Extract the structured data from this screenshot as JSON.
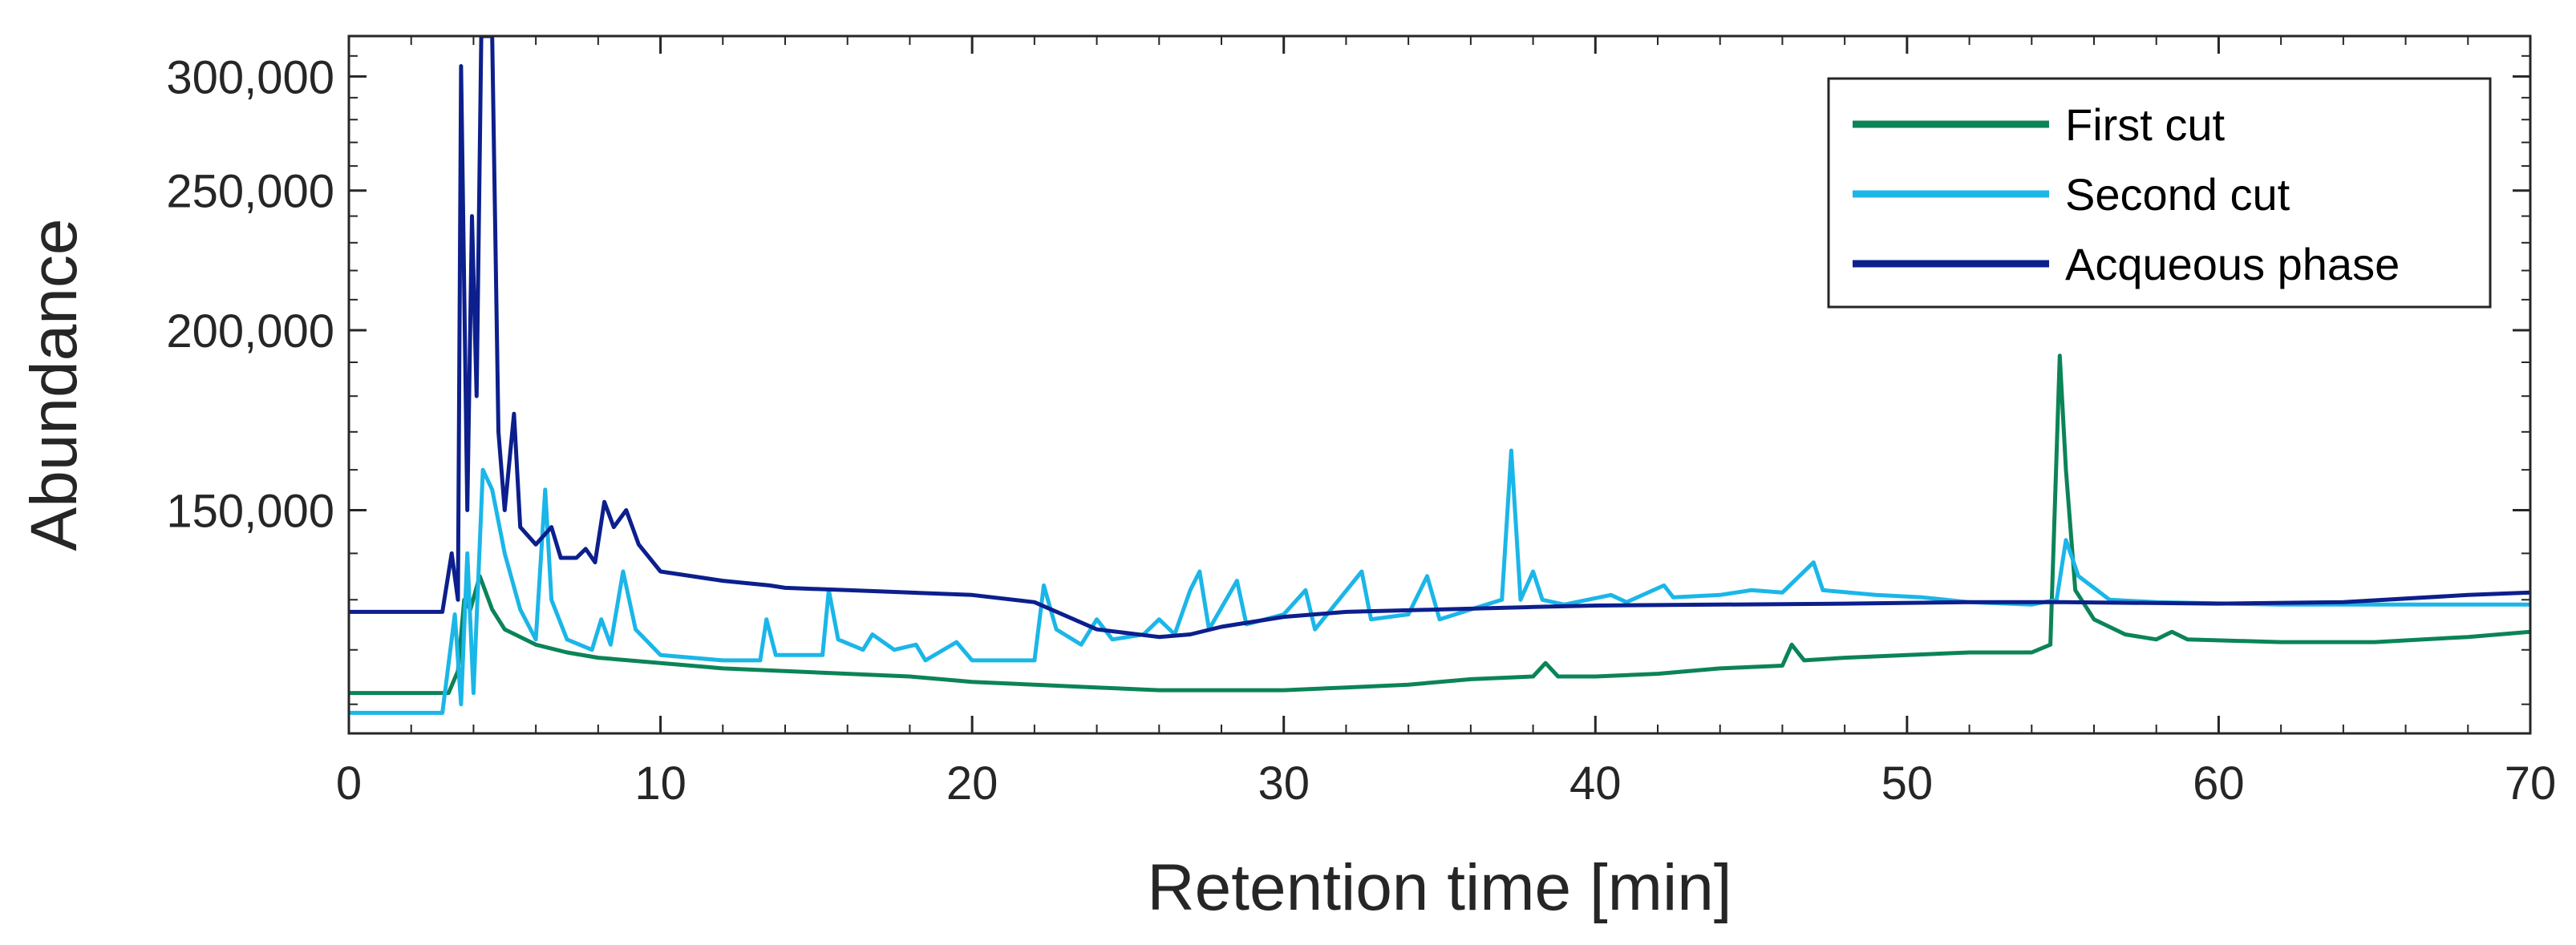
{
  "chart_data": {
    "type": "line",
    "xlabel": "Retention time [min]",
    "ylabel": "Abundance",
    "xlim": [
      0,
      70
    ],
    "ylim": [
      105000,
      320000
    ],
    "y_scale": "log",
    "xticks": [
      "0",
      "10",
      "20",
      "30",
      "40",
      "50",
      "60",
      "70"
    ],
    "yticks": [
      "150,000",
      "200,000",
      "250,000",
      "300,000"
    ],
    "grid": false,
    "legend_position": "top-right",
    "series": [
      {
        "name": "First cut",
        "color": "#0b8457",
        "points": [
          [
            0,
            112000
          ],
          [
            3.2,
            112000
          ],
          [
            3.5,
            116000
          ],
          [
            3.7,
            130000
          ],
          [
            3.9,
            128000
          ],
          [
            4.2,
            135000
          ],
          [
            4.6,
            128000
          ],
          [
            5.0,
            124000
          ],
          [
            6.0,
            121000
          ],
          [
            7.0,
            119500
          ],
          [
            8.0,
            118500
          ],
          [
            10.0,
            117500
          ],
          [
            12.0,
            116500
          ],
          [
            14.0,
            116000
          ],
          [
            16.0,
            115500
          ],
          [
            18.0,
            115000
          ],
          [
            20.0,
            114000
          ],
          [
            22.0,
            113500
          ],
          [
            24.0,
            113000
          ],
          [
            26.0,
            112500
          ],
          [
            28.0,
            112500
          ],
          [
            30.0,
            112500
          ],
          [
            32.0,
            113000
          ],
          [
            34.0,
            113500
          ],
          [
            36.0,
            114500
          ],
          [
            38.0,
            115000
          ],
          [
            38.4,
            117500
          ],
          [
            38.8,
            115000
          ],
          [
            40.0,
            115000
          ],
          [
            42.0,
            115500
          ],
          [
            44.0,
            116500
          ],
          [
            46.0,
            117000
          ],
          [
            46.3,
            121000
          ],
          [
            46.7,
            118000
          ],
          [
            48.0,
            118500
          ],
          [
            50.0,
            119000
          ],
          [
            52.0,
            119500
          ],
          [
            54.0,
            119500
          ],
          [
            54.6,
            121000
          ],
          [
            54.9,
            192000
          ],
          [
            55.1,
            160000
          ],
          [
            55.4,
            132000
          ],
          [
            56.0,
            126000
          ],
          [
            57.0,
            123000
          ],
          [
            58.0,
            122000
          ],
          [
            58.5,
            123500
          ],
          [
            59.0,
            122000
          ],
          [
            62.0,
            121500
          ],
          [
            65.0,
            121500
          ],
          [
            68.0,
            122500
          ],
          [
            70.0,
            123500
          ]
        ]
      },
      {
        "name": "Second cut",
        "color": "#1bb6e8",
        "points": [
          [
            0,
            108500
          ],
          [
            3.0,
            108500
          ],
          [
            3.4,
            127000
          ],
          [
            3.6,
            110000
          ],
          [
            3.8,
            140000
          ],
          [
            4.0,
            112000
          ],
          [
            4.3,
            160000
          ],
          [
            4.6,
            155000
          ],
          [
            5.0,
            140000
          ],
          [
            5.5,
            128000
          ],
          [
            6.0,
            122000
          ],
          [
            6.3,
            155000
          ],
          [
            6.5,
            130000
          ],
          [
            7.0,
            122000
          ],
          [
            7.8,
            120000
          ],
          [
            8.1,
            126000
          ],
          [
            8.4,
            121000
          ],
          [
            8.8,
            136000
          ],
          [
            9.2,
            124000
          ],
          [
            10.0,
            119000
          ],
          [
            12.0,
            118000
          ],
          [
            13.2,
            118000
          ],
          [
            13.4,
            126000
          ],
          [
            13.7,
            119000
          ],
          [
            15.2,
            119000
          ],
          [
            15.4,
            132000
          ],
          [
            15.7,
            122000
          ],
          [
            16.5,
            120000
          ],
          [
            16.8,
            123000
          ],
          [
            17.5,
            120000
          ],
          [
            18.2,
            121000
          ],
          [
            18.5,
            118000
          ],
          [
            19.5,
            121500
          ],
          [
            20.0,
            118000
          ],
          [
            22.0,
            118000
          ],
          [
            22.3,
            133000
          ],
          [
            22.7,
            124000
          ],
          [
            23.5,
            121000
          ],
          [
            24.0,
            126000
          ],
          [
            24.5,
            122000
          ],
          [
            25.5,
            123000
          ],
          [
            26.0,
            126000
          ],
          [
            26.5,
            123000
          ],
          [
            27.0,
            132000
          ],
          [
            27.3,
            136000
          ],
          [
            27.6,
            124000
          ],
          [
            28.5,
            134000
          ],
          [
            28.8,
            125000
          ],
          [
            30.0,
            127000
          ],
          [
            30.7,
            132000
          ],
          [
            31.0,
            124000
          ],
          [
            32.5,
            136000
          ],
          [
            32.8,
            126000
          ],
          [
            34.0,
            127000
          ],
          [
            34.6,
            135000
          ],
          [
            35.0,
            126000
          ],
          [
            36.0,
            128000
          ],
          [
            37.0,
            130000
          ],
          [
            37.3,
            165000
          ],
          [
            37.6,
            130000
          ],
          [
            38.0,
            136000
          ],
          [
            38.3,
            130000
          ],
          [
            39.0,
            129000
          ],
          [
            40.5,
            131000
          ],
          [
            41.0,
            129500
          ],
          [
            42.2,
            133000
          ],
          [
            42.5,
            130500
          ],
          [
            44.0,
            131000
          ],
          [
            45.0,
            132000
          ],
          [
            46.0,
            131500
          ],
          [
            47.0,
            138000
          ],
          [
            47.3,
            132000
          ],
          [
            49.0,
            131000
          ],
          [
            50.5,
            130500
          ],
          [
            52.0,
            129500
          ],
          [
            54.0,
            129000
          ],
          [
            54.8,
            130000
          ],
          [
            55.1,
            143000
          ],
          [
            55.5,
            135000
          ],
          [
            56.5,
            130000
          ],
          [
            58.0,
            129500
          ],
          [
            62.0,
            129000
          ],
          [
            66.0,
            129000
          ],
          [
            70.0,
            129000
          ]
        ]
      },
      {
        "name": "Acqueous phase",
        "color": "#0c1f8c",
        "points": [
          [
            0,
            127500
          ],
          [
            3.0,
            127500
          ],
          [
            3.3,
            140000
          ],
          [
            3.5,
            130000
          ],
          [
            3.6,
            305000
          ],
          [
            3.8,
            150000
          ],
          [
            3.95,
            240000
          ],
          [
            4.1,
            180000
          ],
          [
            4.25,
            320000
          ],
          [
            4.4,
            320000
          ],
          [
            4.6,
            320000
          ],
          [
            4.8,
            170000
          ],
          [
            5.0,
            150000
          ],
          [
            5.3,
            175000
          ],
          [
            5.5,
            146000
          ],
          [
            6.0,
            142000
          ],
          [
            6.5,
            146000
          ],
          [
            6.8,
            139000
          ],
          [
            7.3,
            139000
          ],
          [
            7.6,
            141000
          ],
          [
            7.9,
            138000
          ],
          [
            8.2,
            152000
          ],
          [
            8.5,
            146000
          ],
          [
            8.9,
            150000
          ],
          [
            9.3,
            142000
          ],
          [
            10.0,
            136000
          ],
          [
            12.0,
            134000
          ],
          [
            13.5,
            133000
          ],
          [
            14.0,
            132500
          ],
          [
            16.0,
            132000
          ],
          [
            18.0,
            131500
          ],
          [
            20.0,
            131000
          ],
          [
            22.0,
            129500
          ],
          [
            24.0,
            124000
          ],
          [
            26.0,
            122500
          ],
          [
            27.0,
            123000
          ],
          [
            28.0,
            124500
          ],
          [
            30.0,
            126500
          ],
          [
            32.0,
            127500
          ],
          [
            35.0,
            128000
          ],
          [
            38.0,
            128500
          ],
          [
            40.0,
            128800
          ],
          [
            44.0,
            129000
          ],
          [
            48.0,
            129200
          ],
          [
            52.0,
            129500
          ],
          [
            55.0,
            129500
          ],
          [
            60.0,
            129200
          ],
          [
            64.0,
            129500
          ],
          [
            68.0,
            131000
          ],
          [
            70.0,
            131500
          ]
        ]
      }
    ]
  }
}
